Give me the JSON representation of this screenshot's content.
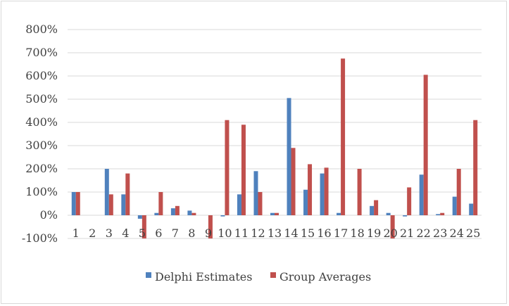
{
  "chart_data": {
    "type": "bar",
    "categories": [
      "1",
      "2",
      "3",
      "4",
      "5",
      "6",
      "7",
      "8",
      "9",
      "10",
      "11",
      "12",
      "13",
      "14",
      "15",
      "16",
      "17",
      "18",
      "19",
      "20",
      "21",
      "22",
      "23",
      "24",
      "25"
    ],
    "series": [
      {
        "name": "Delphi Estimates",
        "color": "#4f81bd",
        "values": [
          100,
          0,
          200,
          90,
          -15,
          10,
          30,
          20,
          0,
          -5,
          90,
          190,
          10,
          505,
          110,
          180,
          10,
          0,
          40,
          10,
          -5,
          175,
          5,
          80,
          50
        ]
      },
      {
        "name": "Group Averages",
        "color": "#c0504d",
        "values": [
          100,
          0,
          90,
          180,
          -100,
          100,
          40,
          10,
          -100,
          410,
          390,
          100,
          10,
          290,
          220,
          205,
          675,
          200,
          65,
          -100,
          120,
          605,
          10,
          200,
          410
        ]
      }
    ],
    "ylim": [
      -100,
      800
    ],
    "yticks": [
      "-100%",
      "0%",
      "100%",
      "200%",
      "300%",
      "400%",
      "500%",
      "600%",
      "700%",
      "800%"
    ],
    "grid": true,
    "legend_position": "bottom"
  }
}
